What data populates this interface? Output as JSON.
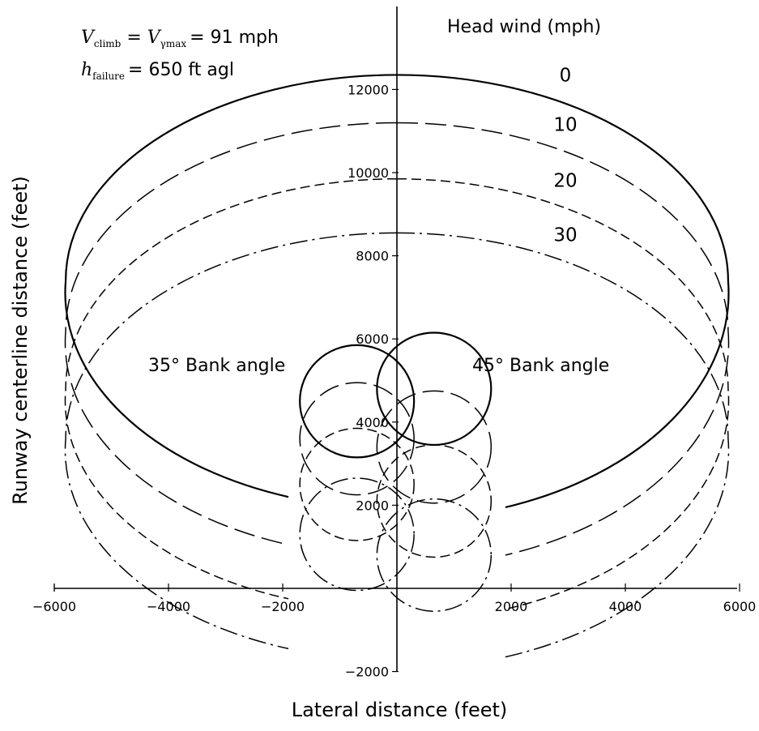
{
  "chart_data": {
    "type": "line",
    "x_axis": {
      "label": "Lateral distance (feet)",
      "range": [
        -6000,
        6000
      ],
      "ticks": [
        -6000,
        -4000,
        -2000,
        2000,
        4000,
        6000
      ],
      "tick_labels": [
        "−6000",
        "−4000",
        "−2000",
        "2000",
        "4000",
        "6000"
      ]
    },
    "y_axis": {
      "label": "Runway centerline distance (feet)",
      "range": [
        -2000,
        12500
      ],
      "ticks": [
        -2000,
        2000,
        4000,
        6000,
        8000,
        10000,
        12000
      ],
      "tick_labels": [
        "−2000",
        "2000",
        "4000",
        "6000",
        "8000",
        "10000",
        "12000"
      ]
    },
    "grid": false,
    "annotations": {
      "condition_1": {
        "lhs": "V",
        "lhs_sub": "climb",
        "mid": "V",
        "mid_sub": "γmax",
        "rhs": "= 91 mph"
      },
      "condition_2": {
        "lhs": "h",
        "lhs_sub": "failure",
        "rhs": "= 650 ft agl"
      },
      "left_region": "35° Bank angle",
      "right_region": "45° Bank angle",
      "legend_title": "Head wind (mph)"
    },
    "series": [
      {
        "name": "0",
        "line_style": "solid",
        "big_loop": {
          "center": [
            0,
            7400
          ],
          "half_width": 5800,
          "top": 12350,
          "bottom_left": 2200,
          "bottom_right": 1950
        },
        "small_loop": {
          "left_center": [
            -700,
            4500
          ],
          "right_center": [
            650,
            4800
          ],
          "radius": 1000
        }
      },
      {
        "name": "10",
        "line_style": "long-dash",
        "big_loop": {
          "center": [
            0,
            6200
          ],
          "half_width": 5800,
          "top": 11200,
          "bottom_left": 1050,
          "bottom_right": 800
        },
        "small_loop": {
          "left_center": [
            -700,
            3600
          ],
          "right_center": [
            650,
            3400
          ],
          "radius": 1000
        }
      },
      {
        "name": "20",
        "line_style": "dash",
        "big_loop": {
          "center": [
            0,
            4800
          ],
          "half_width": 5800,
          "top": 9850,
          "bottom_left": -250,
          "bottom_right": -500
        },
        "small_loop": {
          "left_center": [
            -700,
            2500
          ],
          "right_center": [
            650,
            2100
          ],
          "radius": 1000
        }
      },
      {
        "name": "30",
        "line_style": "dash-dot",
        "big_loop": {
          "center": [
            0,
            3600
          ],
          "half_width": 5800,
          "top": 8550,
          "bottom_left": -1450,
          "bottom_right": -1650
        },
        "small_loop": {
          "left_center": [
            -700,
            1300
          ],
          "right_center": [
            650,
            800
          ],
          "radius": 1000
        }
      }
    ]
  }
}
